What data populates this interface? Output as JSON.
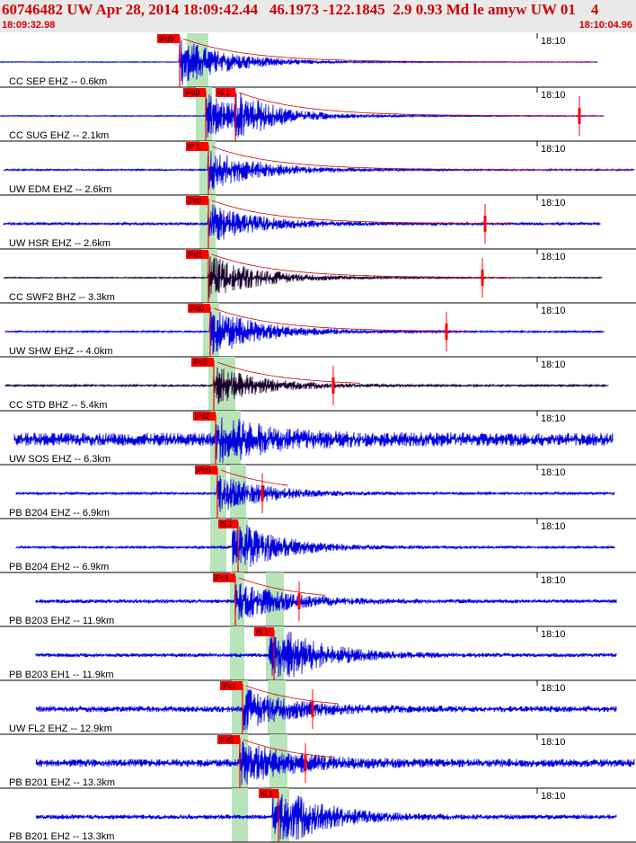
{
  "header": {
    "title": "60746482 UW Apr 28, 2014 18:09:42.44   46.1973 -122.1845  2.9 0.93 Md le amyw UW 01    4",
    "start_time": "18:09:32.98",
    "end_time": "18:10:04.96"
  },
  "colors": {
    "header_bg": "#e9e9e9",
    "header_text": "#d00000",
    "trace_blue": "#0000e0",
    "trace_dark": "#1a0030",
    "coda_red": "#d00000",
    "pick_red": "#ff0000",
    "highlight_green": "#b9e3b9"
  },
  "tick_time": "18:10",
  "traces": [
    {
      "label": "CC SEP EHZ -- 0.6km",
      "pick_p": "iPd0",
      "pick_s": "",
      "color": "blue"
    },
    {
      "label": "CC SUG EHZ -- 2.1km",
      "pick_p": "iPd0",
      "pick_s": "iS 1",
      "color": "blue"
    },
    {
      "label": "UW EDM EHZ -- 2.6km",
      "pick_p": "iP 1",
      "pick_s": "",
      "color": "blue"
    },
    {
      "label": "UW HSR EHZ -- 2.6km",
      "pick_p": "iPc0",
      "pick_s": "",
      "color": "blue"
    },
    {
      "label": "CC SWF2 BHZ -- 3.3km",
      "pick_p": "iPd1",
      "pick_s": "",
      "color": "dark"
    },
    {
      "label": "UW SHW EHZ -- 4.0km",
      "pick_p": "iPd0",
      "pick_s": "",
      "color": "blue"
    },
    {
      "label": "CC STD BHZ -- 5.4km",
      "pick_p": "iPc0",
      "pick_s": "",
      "color": "dark"
    },
    {
      "label": "UW SOS EHZ -- 6.3km",
      "pick_p": "iPd2",
      "pick_s": "",
      "color": "blue"
    },
    {
      "label": "PB B204 EHZ -- 6.9km",
      "pick_p": "iPc0",
      "pick_s": "",
      "color": "blue"
    },
    {
      "label": "PB B204 EH2 -- 6.9km",
      "pick_p": "",
      "pick_s": "iS 1",
      "color": "blue"
    },
    {
      "label": "PB B203 EHZ -- 11.9km",
      "pick_p": "iPc1",
      "pick_s": "",
      "color": "blue"
    },
    {
      "label": "PB B203 EH1 -- 11.9km",
      "pick_p": "",
      "pick_s": "iS 1",
      "color": "blue"
    },
    {
      "label": "UW FL2 EHZ -- 12.9km",
      "pick_p": "iPc1",
      "pick_s": "",
      "color": "blue"
    },
    {
      "label": "PB B201 EHZ -- 13.3km",
      "pick_p": "iPc0",
      "pick_s": "",
      "color": "blue"
    },
    {
      "label": "PB B201 EH2 -- 13.3km",
      "pick_p": "",
      "pick_s": "iS 1",
      "color": "blue"
    }
  ]
}
